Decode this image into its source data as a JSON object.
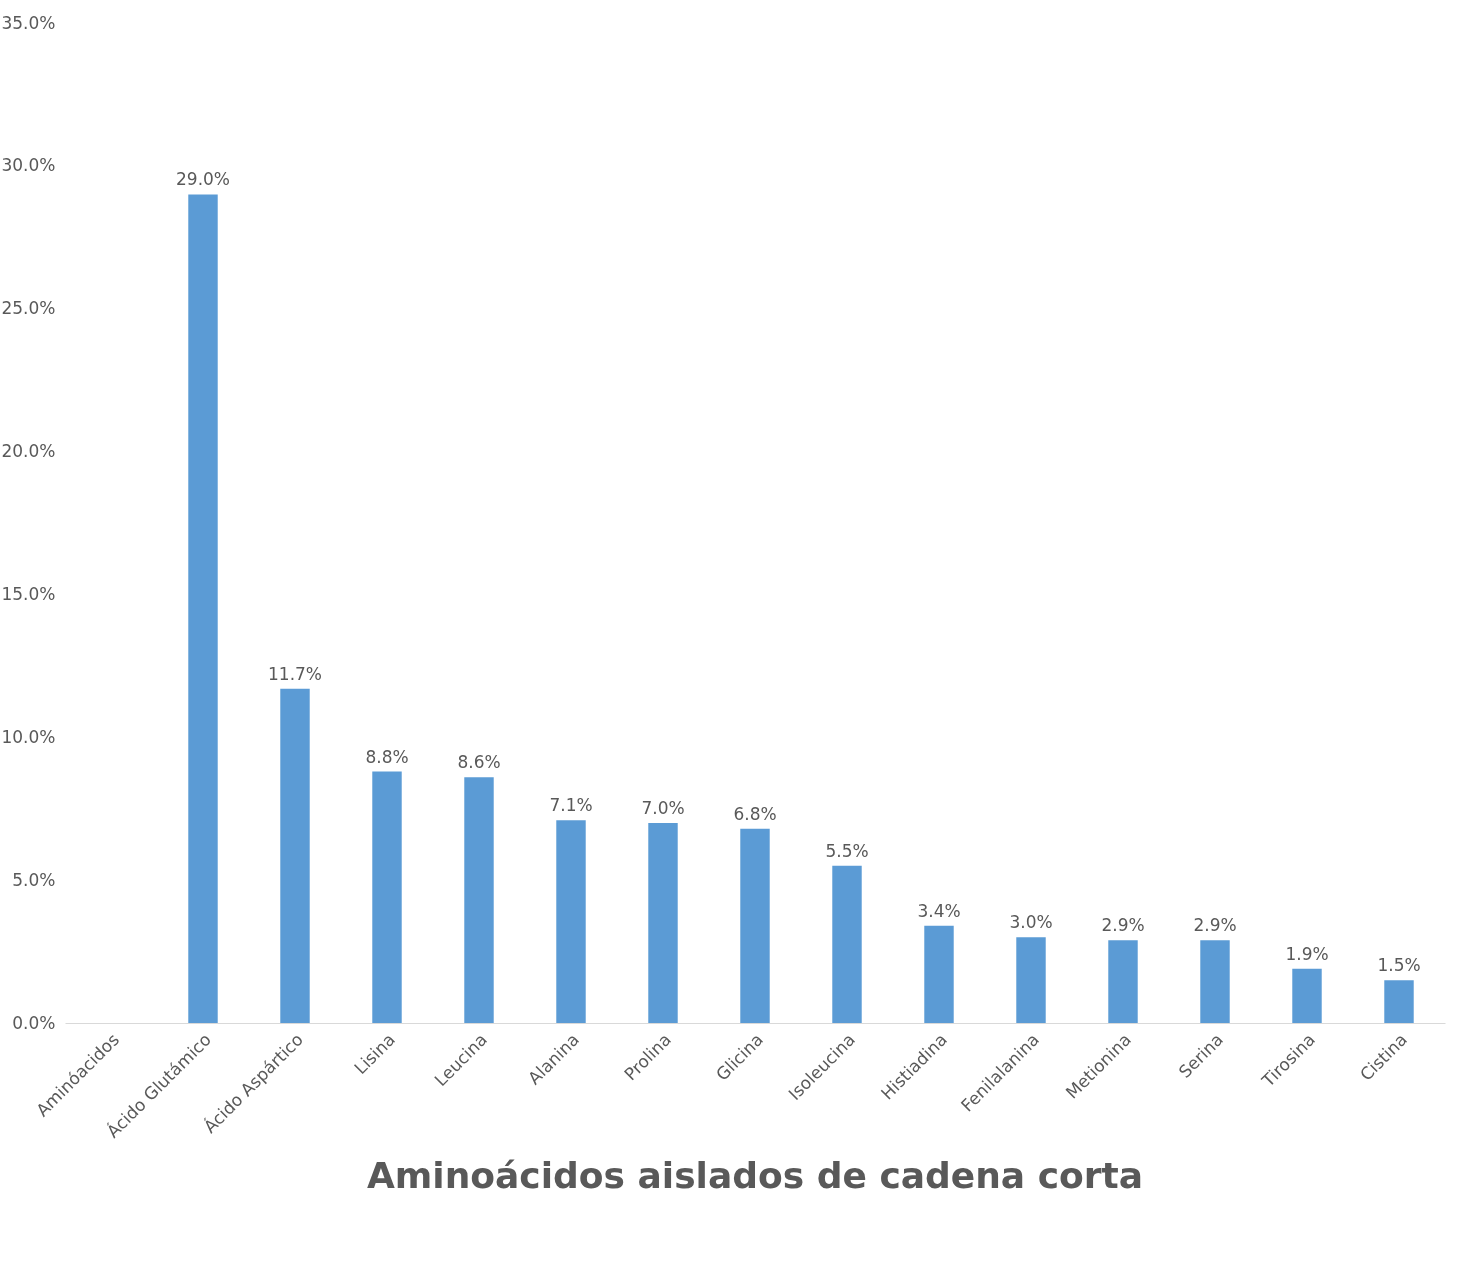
{
  "chart_data": {
    "type": "bar",
    "title": "Aminoácidos aislados de cadena corta",
    "categories": [
      "Aminóacidos",
      "Ácido Glutámico",
      "Ácido Aspártico",
      "Lisina",
      "Leucina",
      "Alanina",
      "Prolina",
      "Glicina",
      "Isoleucina",
      "Histiadina",
      "Fenilalanina",
      "Metionina",
      "Serina",
      "Tirosina",
      "Cistina"
    ],
    "values": [
      null,
      29.0,
      11.7,
      8.8,
      8.6,
      7.1,
      7.0,
      6.8,
      5.5,
      3.4,
      3.0,
      2.9,
      2.9,
      1.9,
      1.5
    ],
    "value_labels": [
      null,
      "29.0%",
      "11.7%",
      "8.8%",
      "8.6%",
      "7.1%",
      "7.0%",
      "6.8%",
      "5.5%",
      "3.4%",
      "3.0%",
      "2.9%",
      "2.9%",
      "1.9%",
      "1.5%"
    ],
    "color": "#5b9bd5",
    "ylim": [
      0,
      35
    ],
    "yticks": [
      {
        "value": 0,
        "label": "0.0%"
      },
      {
        "value": 5,
        "label": "5.0%"
      },
      {
        "value": 10,
        "label": "10.0%"
      },
      {
        "value": 15,
        "label": "15.0%"
      },
      {
        "value": 20,
        "label": "20.0%"
      },
      {
        "value": 25,
        "label": "25.0%"
      },
      {
        "value": 30,
        "label": "30.0%"
      },
      {
        "value": 35,
        "label": "35.0%"
      }
    ],
    "grid": false
  }
}
